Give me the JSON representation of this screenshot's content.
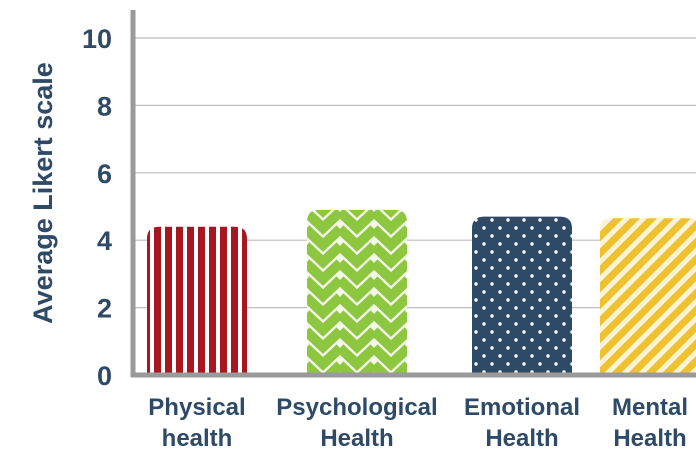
{
  "chart_data": {
    "type": "bar",
    "title": "",
    "xlabel": "",
    "ylabel": "Average Likert scale",
    "ylim": [
      0,
      10
    ],
    "yticks": [
      0,
      2,
      4,
      6,
      8,
      10
    ],
    "grid": true,
    "categories": [
      {
        "line1": "Physical",
        "line2": "health"
      },
      {
        "line1": "Psychological",
        "line2": "Health"
      },
      {
        "line1": "Emotional",
        "line2": "Health"
      },
      {
        "line1": "Mental",
        "line2": "Health"
      }
    ],
    "values": [
      4.4,
      4.9,
      4.7,
      4.65
    ],
    "colors": {
      "axis": "#9a9a9a",
      "grid": "#bdbdbd",
      "text": "#2f4a66",
      "bars": [
        "#a8171f",
        "#8dc63f",
        "#2f4a66",
        "#efc12f"
      ]
    },
    "patterns": [
      "vertical-stripes",
      "chevron",
      "dots",
      "diagonal-stripes"
    ]
  }
}
